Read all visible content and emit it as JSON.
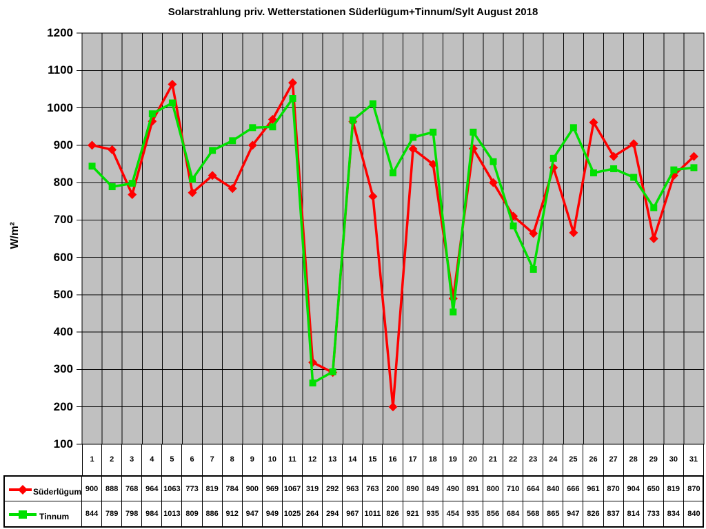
{
  "chart_data": {
    "type": "line",
    "title": "Solarstrahlung priv. Wetterstationen Süderlügum+Tinnum/Sylt August 2018",
    "xlabel": "",
    "ylabel": "W/m²",
    "ylim": [
      100,
      1200
    ],
    "ytick_step": 100,
    "grid": true,
    "plot_bg_color": "#c0c0c0",
    "grid_color": "#000000",
    "legend_position": "bottom-table",
    "categories": [
      "1",
      "2",
      "3",
      "4",
      "5",
      "6",
      "7",
      "8",
      "9",
      "10",
      "11",
      "12",
      "13",
      "14",
      "15",
      "16",
      "17",
      "18",
      "19",
      "20",
      "21",
      "22",
      "23",
      "24",
      "25",
      "26",
      "27",
      "28",
      "29",
      "30",
      "31"
    ],
    "series": [
      {
        "name": "Süderlügum",
        "color": "#ff0000",
        "marker": "diamond",
        "values": [
          900,
          888,
          768,
          964,
          1063,
          773,
          819,
          784,
          900,
          969,
          1067,
          319,
          292,
          963,
          763,
          200,
          890,
          849,
          490,
          891,
          800,
          710,
          664,
          840,
          666,
          961,
          870,
          904,
          650,
          819,
          870
        ]
      },
      {
        "name": "Tinnum",
        "color": "#00e000",
        "marker": "square",
        "values": [
          844,
          789,
          798,
          984,
          1013,
          809,
          886,
          912,
          947,
          949,
          1025,
          264,
          294,
          967,
          1011,
          826,
          921,
          935,
          454,
          935,
          856,
          684,
          568,
          865,
          947,
          826,
          837,
          814,
          733,
          834,
          840
        ]
      }
    ]
  }
}
